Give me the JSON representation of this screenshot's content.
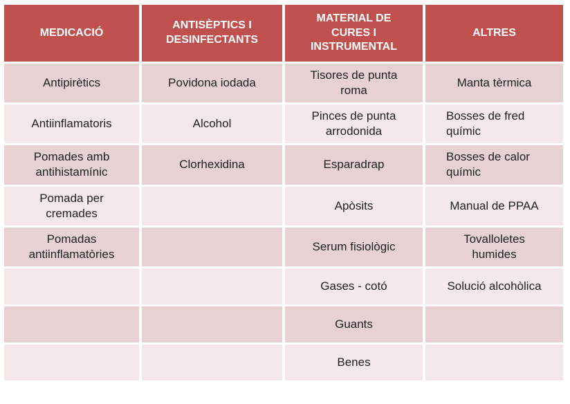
{
  "colors": {
    "header_bg": "#c0504d",
    "header_text": "#ffffff",
    "band_dark": "#e7d1d3",
    "band_light": "#f4e8e9",
    "body_text": "#1f1f1f",
    "page_bg": "#ffffff"
  },
  "table": {
    "headers": [
      "MEDICACIÓ",
      "ANTISÈPTICS I\nDESINFECTANTS",
      "MATERIAL DE\nCURES I\nINSTRUMENTAL",
      "ALTRES"
    ],
    "rows": [
      [
        "Antipirètics",
        "Povidona iodada",
        "Tisores de punta\nroma",
        "Manta tèrmica"
      ],
      [
        "Antiinflamatoris",
        "Alcohol",
        "Pinces de punta\narrodonida",
        {
          "text": "Bosses de fred\nquímic",
          "align": "left"
        }
      ],
      [
        "Pomades amb\nantihistamínic",
        "Clorhexidina",
        "Esparadrap",
        {
          "text": "Bosses de calor\nquímic",
          "align": "left"
        }
      ],
      [
        "Pomada per\ncremades",
        "",
        "Apòsits",
        "Manual de PPAA"
      ],
      [
        "Pomadas\nantiinflamatòries",
        "",
        "Serum fisiològic",
        "Tovalloletes\nhumides"
      ],
      [
        "",
        "",
        "Gases - cotó",
        "Solució alcohòlica"
      ],
      [
        "",
        "",
        "Guants",
        ""
      ],
      [
        "",
        "",
        "Benes",
        ""
      ]
    ]
  }
}
